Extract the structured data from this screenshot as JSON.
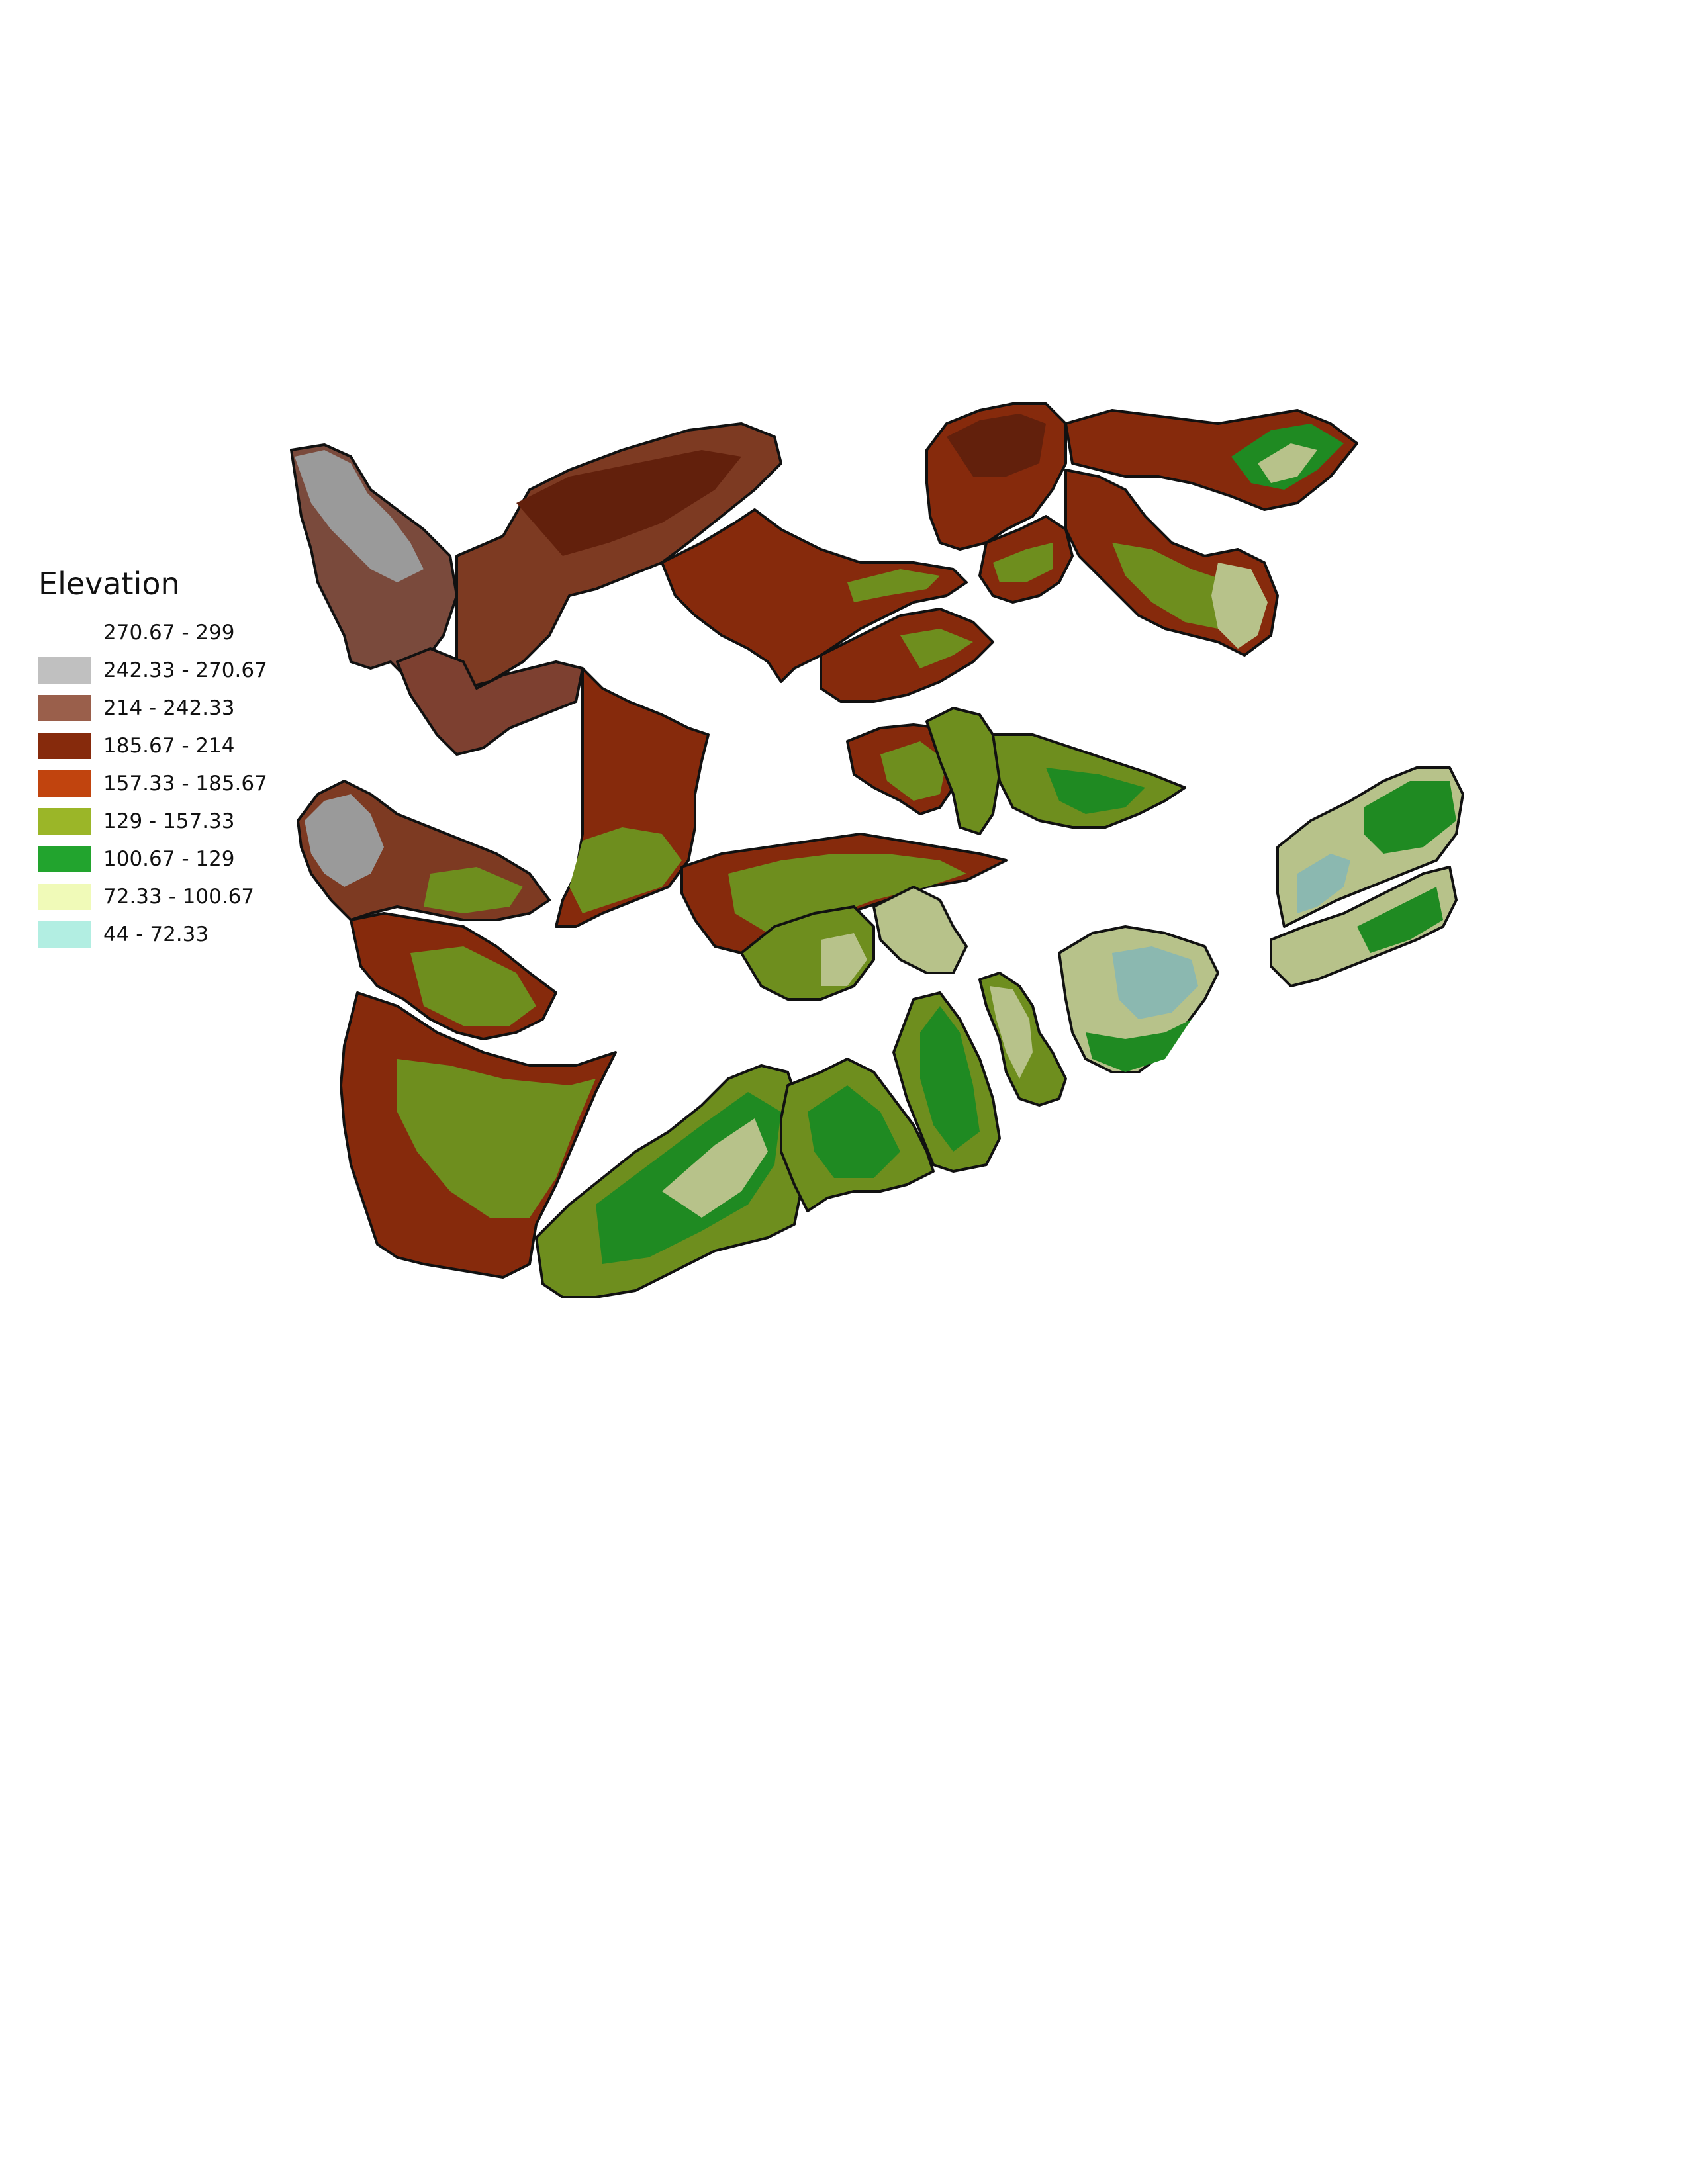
{
  "map": {
    "legend": {
      "title": "Elevation",
      "items": [
        {
          "label": "270.67 - 299",
          "color": "#ffffff"
        },
        {
          "label": "242.33 - 270.67",
          "color": "#c0c0c0"
        },
        {
          "label": "214 - 242.33",
          "color": "#9a5f4b"
        },
        {
          "label": "185.67 - 214",
          "color": "#862a0c"
        },
        {
          "label": "157.33 - 185.67",
          "color": "#c1440e"
        },
        {
          "label": "129 - 157.33",
          "color": "#9bb628"
        },
        {
          "label": "100.67 - 129",
          "color": "#22a42e"
        },
        {
          "label": "72.33 - 100.67",
          "color": "#f0fab8"
        },
        {
          "label": "44 - 72.33",
          "color": "#b2eee2"
        }
      ]
    }
  }
}
